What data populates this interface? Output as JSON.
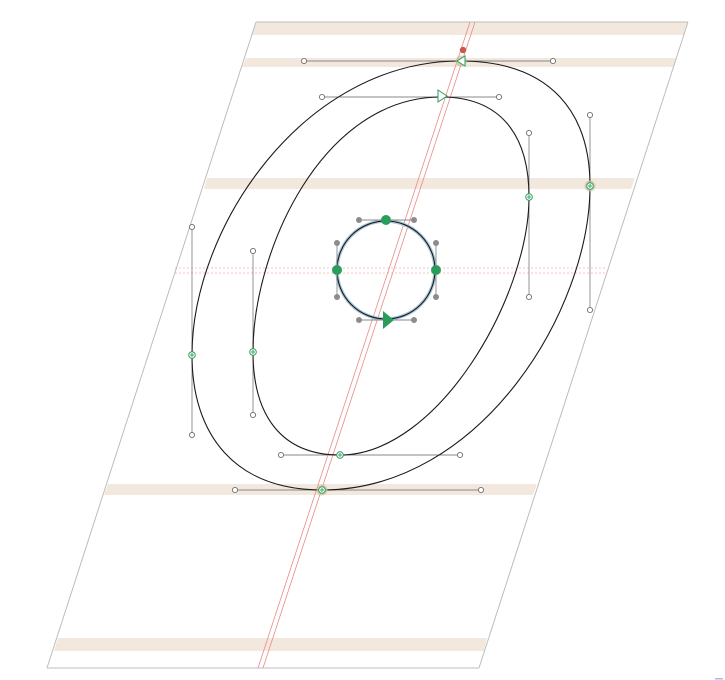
{
  "canvas": {
    "label": "glyph-editor-canvas",
    "glyph_shown": "zero (outline)",
    "zones_visible": true,
    "colors": {
      "on_curve": "#2a9d5c",
      "guide": "#ea8a88",
      "zone": "#f2e8de",
      "outline": "#1a1a1a",
      "anchor": "#c75a49",
      "selection": "#a8c8dc"
    },
    "icons": {
      "start_point": "triangle-start-icon",
      "direction": "direction-arrow-icon"
    }
  }
}
